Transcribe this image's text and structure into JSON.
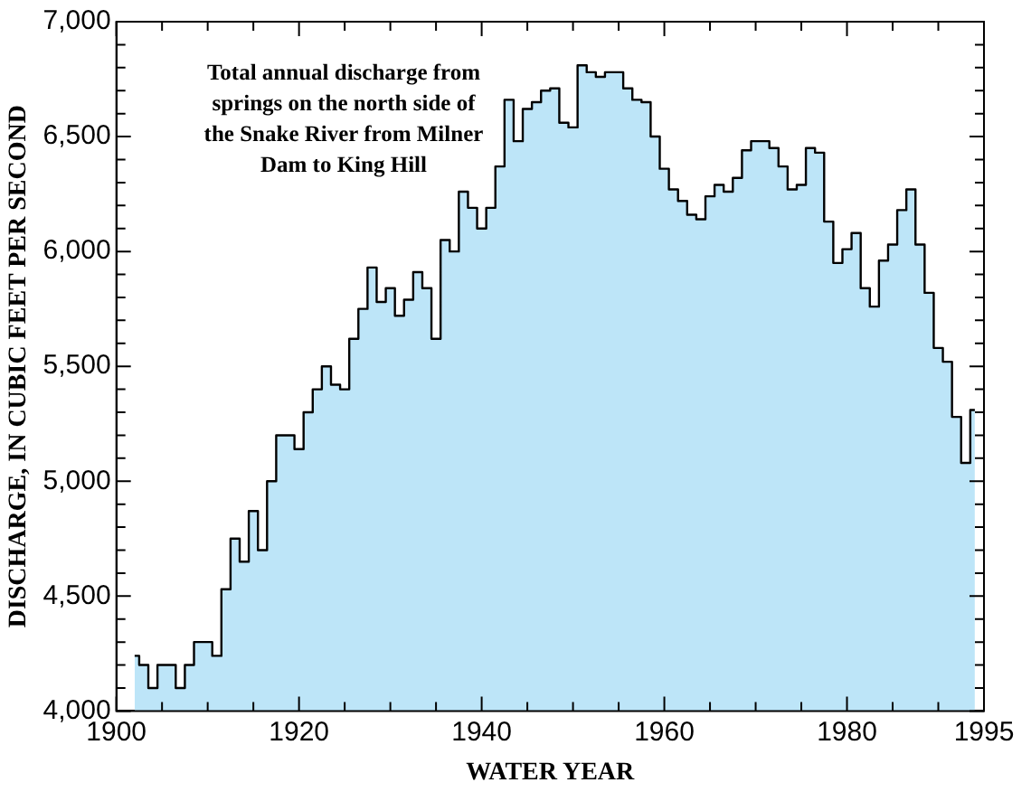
{
  "chart_data": {
    "type": "step",
    "xlabel": "WATER YEAR",
    "ylabel": "DISCHARGE, IN CUBIC FEET PER SECOND",
    "annotations": [
      "Total annual discharge from springs on the north side of the Snake River from Milner Dam to King Hill"
    ],
    "x": [
      1902,
      1903,
      1904,
      1905,
      1906,
      1907,
      1908,
      1909,
      1910,
      1911,
      1912,
      1913,
      1914,
      1915,
      1916,
      1917,
      1918,
      1919,
      1920,
      1921,
      1922,
      1923,
      1924,
      1925,
      1926,
      1927,
      1928,
      1929,
      1930,
      1931,
      1932,
      1933,
      1934,
      1935,
      1936,
      1937,
      1938,
      1939,
      1940,
      1941,
      1942,
      1943,
      1944,
      1945,
      1946,
      1947,
      1948,
      1949,
      1950,
      1951,
      1952,
      1953,
      1954,
      1955,
      1956,
      1957,
      1958,
      1959,
      1960,
      1961,
      1962,
      1963,
      1964,
      1965,
      1966,
      1967,
      1968,
      1969,
      1970,
      1971,
      1972,
      1973,
      1974,
      1975,
      1976,
      1977,
      1978,
      1979,
      1980,
      1981,
      1982,
      1983,
      1984,
      1985,
      1986,
      1987,
      1988,
      1989,
      1990,
      1991,
      1992,
      1993,
      1994
    ],
    "series": [
      {
        "type": "area",
        "color": "#bde5f8",
        "values": [
          4240,
          4200,
          4100,
          4200,
          4200,
          4100,
          4200,
          4300,
          4300,
          4240,
          4530,
          4750,
          4650,
          4870,
          4700,
          5000,
          5200,
          5200,
          5140,
          5300,
          5400,
          5500,
          5420,
          5400,
          5620,
          5750,
          5930,
          5780,
          5840,
          5720,
          5790,
          5910,
          5840,
          5620,
          6050,
          6000,
          6260,
          6190,
          6100,
          6190,
          6370,
          6660,
          6480,
          6620,
          6650,
          6700,
          6710,
          6560,
          6540,
          6810,
          6780,
          6760,
          6780,
          6780,
          6710,
          6660,
          6650,
          6500,
          6360,
          6270,
          6220,
          6160,
          6140,
          6240,
          6290,
          6260,
          6320,
          6440,
          6480,
          6480,
          6450,
          6370,
          6270,
          6290,
          6450,
          6430,
          6130,
          5950,
          6010,
          6080,
          5840,
          5760,
          5960,
          6030,
          6180,
          6270,
          6030,
          5820,
          5580,
          5520,
          5280,
          5080,
          5310
        ]
      }
    ],
    "xlim": [
      1900,
      1995
    ],
    "xticks": [
      1900,
      {
        "value": 1905,
        "label": null
      },
      {
        "value": 1910,
        "label": null
      },
      {
        "value": 1915,
        "label": null
      },
      1920,
      {
        "value": 1925,
        "label": null
      },
      {
        "value": 1930,
        "label": null
      },
      {
        "value": 1935,
        "label": null
      },
      1940,
      {
        "value": 1945,
        "label": null
      },
      {
        "value": 1950,
        "label": null
      },
      {
        "value": 1955,
        "label": null
      },
      1960,
      {
        "value": 1965,
        "label": null
      },
      {
        "value": 1970,
        "label": null
      },
      {
        "value": 1975,
        "label": null
      },
      1980,
      {
        "value": 1985,
        "label": null
      },
      {
        "value": 1990,
        "label": null
      },
      1995
    ],
    "ylim": [
      4000,
      7000
    ],
    "yticks": [
      {
        "value": 4000,
        "label": "4,000"
      },
      {
        "value": 4100,
        "label": null
      },
      {
        "value": 4200,
        "label": null
      },
      {
        "value": 4300,
        "label": null
      },
      {
        "value": 4400,
        "label": null
      },
      {
        "value": 4500,
        "label": "4,500"
      },
      {
        "value": 4600,
        "label": null
      },
      {
        "value": 4700,
        "label": null
      },
      {
        "value": 4800,
        "label": null
      },
      {
        "value": 4900,
        "label": null
      },
      {
        "value": 5000,
        "label": "5,000"
      },
      {
        "value": 5100,
        "label": null
      },
      {
        "value": 5200,
        "label": null
      },
      {
        "value": 5300,
        "label": null
      },
      {
        "value": 5400,
        "label": null
      },
      {
        "value": 5500,
        "label": "5,500"
      },
      {
        "value": 5600,
        "label": null
      },
      {
        "value": 5700,
        "label": null
      },
      {
        "value": 5800,
        "label": null
      },
      {
        "value": 5900,
        "label": null
      },
      {
        "value": 6000,
        "label": "6,000"
      },
      {
        "value": 6100,
        "label": null
      },
      {
        "value": 6200,
        "label": null
      },
      {
        "value": 6300,
        "label": null
      },
      {
        "value": 6400,
        "label": null
      },
      {
        "value": 6500,
        "label": "6,500"
      },
      {
        "value": 6600,
        "label": null
      },
      {
        "value": 6700,
        "label": null
      },
      {
        "value": 6800,
        "label": null
      },
      {
        "value": 6900,
        "label": null
      },
      {
        "value": 7000,
        "label": "7,000"
      }
    ],
    "grid": false,
    "legend": false
  }
}
